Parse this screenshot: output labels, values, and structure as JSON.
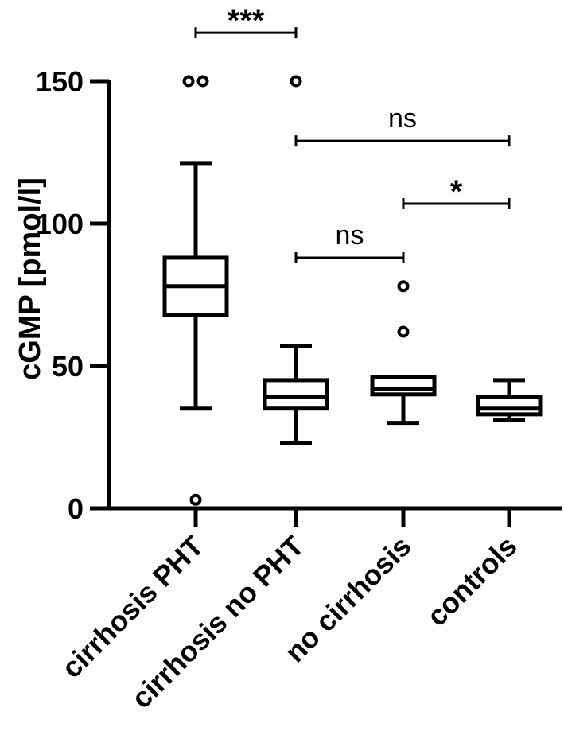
{
  "chart_data": {
    "type": "box",
    "ylabel": "cGMP [pmol/l]",
    "ylim": [
      0,
      150
    ],
    "yticks": [
      0,
      50,
      100,
      150
    ],
    "grid": false,
    "categories": [
      "cirrhosis PHT",
      "cirrhosis no PHT",
      "no cirrhosis",
      "controls"
    ],
    "boxes": [
      {
        "category": "cirrhosis PHT",
        "whisker_low": 35,
        "q1": 68,
        "median": 78,
        "q3": 88,
        "whisker_high": 121,
        "outliers": [
          150,
          150,
          3
        ]
      },
      {
        "category": "cirrhosis no PHT",
        "whisker_low": 23,
        "q1": 35,
        "median": 39,
        "q3": 45,
        "whisker_high": 57,
        "outliers": [
          150
        ]
      },
      {
        "category": "no cirrhosis",
        "whisker_low": 30,
        "q1": 40,
        "median": 42,
        "q3": 46,
        "whisker_high": 46,
        "outliers": [
          78,
          62
        ]
      },
      {
        "category": "controls",
        "whisker_low": 31,
        "q1": 33,
        "median": 35,
        "q3": 39,
        "whisker_high": 45,
        "outliers": []
      }
    ],
    "significance": [
      {
        "from": 0,
        "to": 1,
        "y": 167,
        "label": "***"
      },
      {
        "from": 1,
        "to": 3,
        "y": 129,
        "label": "ns"
      },
      {
        "from": 2,
        "to": 4,
        "y": 107,
        "label": "*"
      },
      {
        "from": 1,
        "to": 2,
        "y": 88,
        "label": "ns"
      }
    ]
  }
}
